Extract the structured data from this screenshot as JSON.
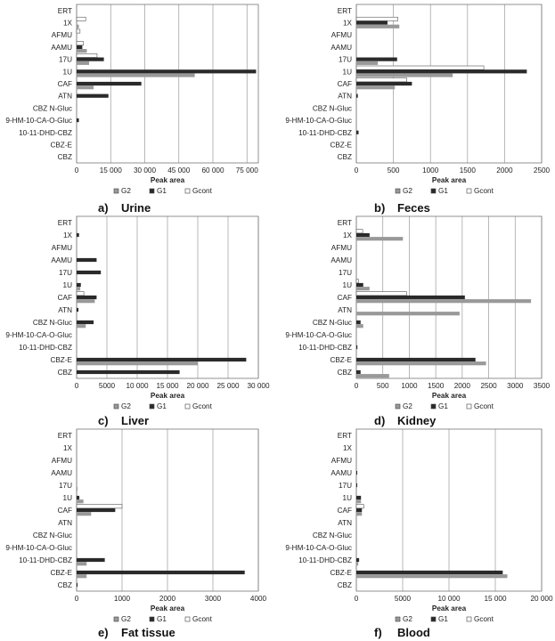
{
  "legend": {
    "g2": "G2",
    "g1": "G1",
    "gcont": "Gcont"
  },
  "x_axis_title": "Peak area",
  "colors": {
    "g2": "#999999",
    "g1": "#2a2a2a",
    "gcont": "#ffffff",
    "grid": "#9a9a9a",
    "frame": "#777777"
  },
  "chart_data": [
    {
      "id": "a",
      "type": "bar",
      "orientation": "horizontal",
      "caption_letter": "a)",
      "caption_title": "Urine",
      "categories": [
        "ERT",
        "1X",
        "AFMU",
        "AAMU",
        "17U",
        "1U",
        "CAF",
        "ATN",
        "CBZ N-Gluc",
        "9-HM-10-CA-O-Gluc",
        "10-11-DHD-CBZ",
        "CBZ-E",
        "CBZ"
      ],
      "xlim": [
        0,
        80000
      ],
      "ticks": [
        0,
        15000,
        30000,
        45000,
        60000,
        75000
      ],
      "tick_labels": [
        "0",
        "15 000",
        "30 000",
        "45 000",
        "60 000",
        "75 000"
      ],
      "xlabel": "Peak area",
      "series": [
        {
          "name": "G2",
          "key": "g2",
          "values": [
            0,
            1000,
            0,
            4500,
            5500,
            52000,
            7500,
            0,
            0,
            0,
            0,
            0,
            0
          ]
        },
        {
          "name": "G1",
          "key": "g1",
          "values": [
            0,
            0,
            0,
            2500,
            12000,
            79000,
            28500,
            14000,
            0,
            1000,
            0,
            0,
            0
          ]
        },
        {
          "name": "Gcont",
          "key": "gcont",
          "values": [
            0,
            4000,
            1500,
            3000,
            9000,
            0,
            0,
            0,
            0,
            0,
            0,
            0,
            0
          ]
        }
      ]
    },
    {
      "id": "b",
      "type": "bar",
      "orientation": "horizontal",
      "caption_letter": "b)",
      "caption_title": "Feces",
      "categories": [
        "ERT",
        "1X",
        "AFMU",
        "AAMU",
        "17U",
        "1U",
        "CAF",
        "ATN",
        "CBZ N-Gluc",
        "9-HM-10-CA-O-Gluc",
        "10-11-DHD-CBZ",
        "CBZ-E",
        "CBZ"
      ],
      "xlim": [
        0,
        2500
      ],
      "ticks": [
        0,
        500,
        1000,
        1500,
        2000,
        2500
      ],
      "tick_labels": [
        "0",
        "500",
        "1000",
        "1500",
        "2000",
        "2500"
      ],
      "xlabel": "Peak area",
      "series": [
        {
          "name": "G2",
          "key": "g2",
          "values": [
            0,
            580,
            0,
            0,
            290,
            1300,
            520,
            0,
            0,
            0,
            0,
            0,
            0
          ]
        },
        {
          "name": "G1",
          "key": "g1",
          "values": [
            0,
            420,
            0,
            0,
            550,
            2300,
            750,
            20,
            0,
            0,
            30,
            0,
            0
          ]
        },
        {
          "name": "Gcont",
          "key": "gcont",
          "values": [
            0,
            560,
            0,
            0,
            0,
            1720,
            680,
            0,
            0,
            0,
            0,
            0,
            0
          ]
        }
      ]
    },
    {
      "id": "c",
      "type": "bar",
      "orientation": "horizontal",
      "caption_letter": "c)",
      "caption_title": "Liver",
      "categories": [
        "ERT",
        "1X",
        "AFMU",
        "AAMU",
        "17U",
        "1U",
        "CAF",
        "ATN",
        "CBZ N-Gluc",
        "9-HM-10-CA-O-Gluc",
        "10-11-DHD-CBZ",
        "CBZ-E",
        "CBZ"
      ],
      "xlim": [
        0,
        30000
      ],
      "ticks": [
        0,
        5000,
        10000,
        15000,
        20000,
        25000,
        30000
      ],
      "tick_labels": [
        "0",
        "5000",
        "10 000",
        "15 000",
        "20 000",
        "25 000",
        "30 000"
      ],
      "xlabel": "Peak area",
      "series": [
        {
          "name": "G2",
          "key": "g2",
          "values": [
            0,
            0,
            0,
            0,
            0,
            600,
            3000,
            0,
            1500,
            0,
            0,
            20000,
            0
          ]
        },
        {
          "name": "G1",
          "key": "g1",
          "values": [
            0,
            400,
            0,
            3300,
            4000,
            700,
            3300,
            300,
            2800,
            0,
            0,
            28000,
            17000
          ]
        },
        {
          "name": "Gcont",
          "key": "gcont",
          "values": [
            0,
            0,
            0,
            0,
            0,
            0,
            1200,
            0,
            0,
            0,
            0,
            0,
            0
          ]
        }
      ]
    },
    {
      "id": "d",
      "type": "bar",
      "orientation": "horizontal",
      "caption_letter": "d)",
      "caption_title": "Kidney",
      "categories": [
        "ERT",
        "1X",
        "AFMU",
        "AAMU",
        "17U",
        "1U",
        "CAF",
        "ATN",
        "CBZ N-Gluc",
        "9-HM-10-CA-O-Gluc",
        "10-11-DHD-CBZ",
        "CBZ-E",
        "CBZ"
      ],
      "xlim": [
        0,
        3500
      ],
      "ticks": [
        0,
        500,
        1000,
        1500,
        2000,
        2500,
        3000,
        3500
      ],
      "tick_labels": [
        "0",
        "500",
        "1000",
        "1500",
        "2000",
        "2500",
        "3000",
        "3500"
      ],
      "xlabel": "Peak area",
      "series": [
        {
          "name": "G2",
          "key": "g2",
          "values": [
            0,
            880,
            0,
            0,
            0,
            250,
            3300,
            1950,
            130,
            0,
            0,
            2450,
            620
          ]
        },
        {
          "name": "G1",
          "key": "g1",
          "values": [
            0,
            250,
            0,
            0,
            0,
            130,
            2050,
            0,
            80,
            0,
            20,
            2250,
            80
          ]
        },
        {
          "name": "Gcont",
          "key": "gcont",
          "values": [
            0,
            120,
            0,
            0,
            0,
            40,
            950,
            0,
            0,
            0,
            0,
            0,
            0
          ]
        }
      ]
    },
    {
      "id": "e",
      "type": "bar",
      "orientation": "horizontal",
      "caption_letter": "e)",
      "caption_title": "Fat tissue",
      "categories": [
        "ERT",
        "1X",
        "AFMU",
        "AAMU",
        "17U",
        "1U",
        "CAF",
        "ATN",
        "CBZ N-Gluc",
        "9-HM-10-CA-O-Gluc",
        "10-11-DHD-CBZ",
        "CBZ-E",
        "CBZ"
      ],
      "xlim": [
        0,
        4000
      ],
      "ticks": [
        0,
        1000,
        2000,
        3000,
        4000
      ],
      "tick_labels": [
        "0",
        "1000",
        "2000",
        "3000",
        "4000"
      ],
      "xlabel": "Peak area",
      "series": [
        {
          "name": "G2",
          "key": "g2",
          "values": [
            0,
            0,
            0,
            0,
            20,
            150,
            320,
            0,
            0,
            0,
            220,
            220,
            0
          ]
        },
        {
          "name": "G1",
          "key": "g1",
          "values": [
            0,
            0,
            0,
            0,
            0,
            60,
            850,
            0,
            0,
            0,
            620,
            3700,
            20
          ]
        },
        {
          "name": "Gcont",
          "key": "gcont",
          "values": [
            0,
            0,
            0,
            0,
            0,
            0,
            1000,
            0,
            0,
            0,
            0,
            0,
            0
          ]
        }
      ]
    },
    {
      "id": "f",
      "type": "bar",
      "orientation": "horizontal",
      "caption_letter": "f)",
      "caption_title": "Blood",
      "categories": [
        "ERT",
        "1X",
        "AFMU",
        "AAMU",
        "17U",
        "1U",
        "CAF",
        "ATN",
        "CBZ N-Gluc",
        "9-HM-10-CA-O-Gluc",
        "10-11-DHD-CBZ",
        "CBZ-E",
        "CBZ"
      ],
      "xlim": [
        0,
        20000
      ],
      "ticks": [
        0,
        5000,
        10000,
        15000,
        20000
      ],
      "tick_labels": [
        "0",
        "5000",
        "10 000",
        "15 000",
        "20 000"
      ],
      "xlabel": "Peak area",
      "series": [
        {
          "name": "G2",
          "key": "g2",
          "values": [
            0,
            0,
            0,
            0,
            0,
            500,
            600,
            0,
            0,
            0,
            200,
            16300,
            0
          ]
        },
        {
          "name": "G1",
          "key": "g1",
          "values": [
            0,
            0,
            0,
            100,
            100,
            500,
            600,
            0,
            0,
            0,
            300,
            15800,
            0
          ]
        },
        {
          "name": "Gcont",
          "key": "gcont",
          "values": [
            0,
            0,
            0,
            0,
            0,
            0,
            800,
            0,
            0,
            0,
            0,
            0,
            0
          ]
        }
      ]
    }
  ]
}
